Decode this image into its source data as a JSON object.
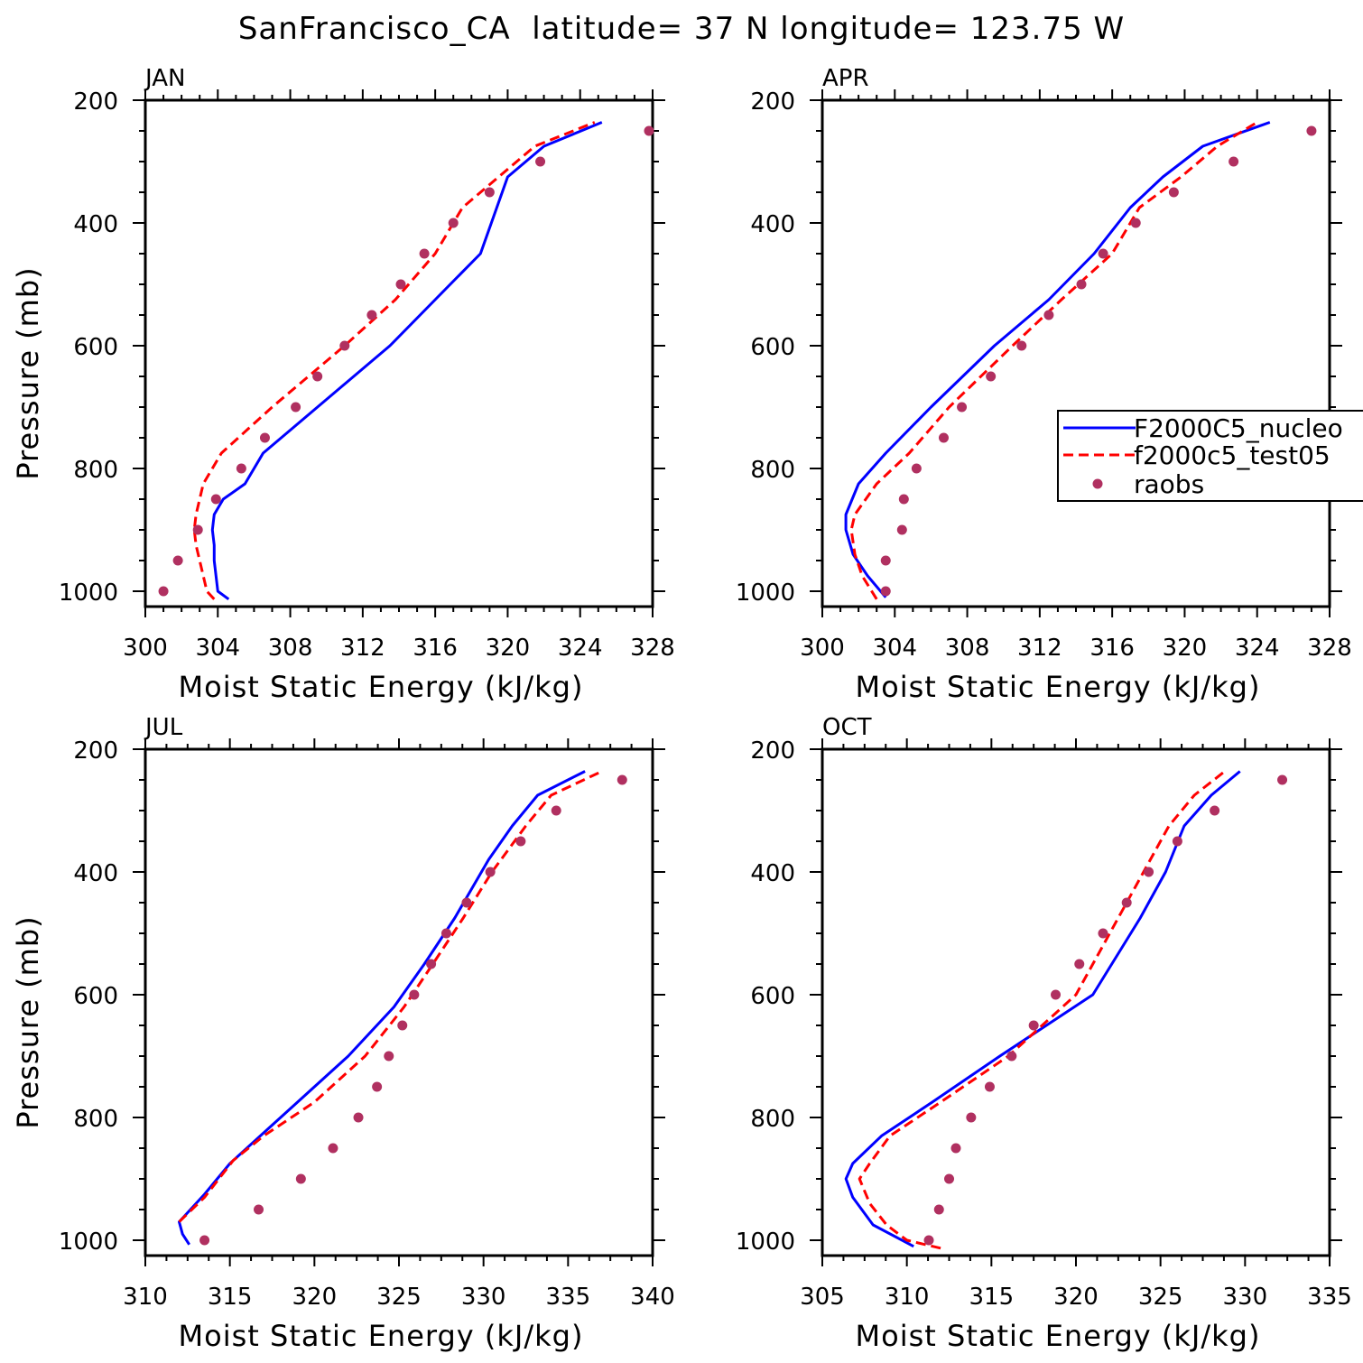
{
  "title": "SanFrancisco_CA  latitude= 37 N longitude= 123.75 W",
  "legend": {
    "entries": [
      {
        "label": "F2000C5_nucleo",
        "style": "solid",
        "color": "#0000ff"
      },
      {
        "label": "f2000c5_test05",
        "style": "dashed",
        "color": "#ff0000"
      },
      {
        "label": "raobs",
        "style": "marker",
        "color": "#b03060"
      }
    ]
  },
  "chart_data": [
    {
      "type": "line",
      "panel": "JAN",
      "xlabel": "Moist Static Energy (kJ/kg)",
      "ylabel": "Pressure (mb)",
      "xlim": [
        300,
        328
      ],
      "ylim": [
        1000,
        200
      ],
      "xticks": [
        300,
        304,
        308,
        312,
        316,
        320,
        324,
        328
      ],
      "yticks": [
        200,
        400,
        600,
        800,
        1000
      ],
      "series": [
        {
          "name": "F2000C5_nucleo",
          "color": "#0000ff",
          "style": "solid",
          "points": [
            [
              304.6,
              1013
            ],
            [
              304.0,
              1000
            ],
            [
              303.9,
              975
            ],
            [
              303.8,
              950
            ],
            [
              303.8,
              925
            ],
            [
              303.7,
              900
            ],
            [
              303.8,
              875
            ],
            [
              304.3,
              850
            ],
            [
              305.5,
              825
            ],
            [
              306.5,
              775
            ],
            [
              309.5,
              700
            ],
            [
              313.5,
              600
            ],
            [
              316.0,
              525
            ],
            [
              318.5,
              450
            ],
            [
              320.0,
              325
            ],
            [
              322.0,
              275
            ],
            [
              325.2,
              236
            ]
          ]
        },
        {
          "name": "f2000c5_test05",
          "color": "#ff0000",
          "style": "dashed",
          "points": [
            [
              303.8,
              1013
            ],
            [
              303.4,
              1000
            ],
            [
              303.2,
              975
            ],
            [
              303.0,
              950
            ],
            [
              302.8,
              925
            ],
            [
              302.7,
              900
            ],
            [
              302.8,
              875
            ],
            [
              303.2,
              825
            ],
            [
              304.2,
              775
            ],
            [
              307.0,
              700
            ],
            [
              311.0,
              600
            ],
            [
              313.8,
              525
            ],
            [
              316.0,
              450
            ],
            [
              317.5,
              375
            ],
            [
              319.5,
              325
            ],
            [
              321.5,
              275
            ],
            [
              324.8,
              236
            ]
          ]
        },
        {
          "name": "raobs",
          "color": "#b03060",
          "style": "marker",
          "points": [
            [
              301.0,
              1000
            ],
            [
              301.8,
              950
            ],
            [
              302.9,
              900
            ],
            [
              303.9,
              850
            ],
            [
              305.3,
              800
            ],
            [
              306.6,
              750
            ],
            [
              308.3,
              700
            ],
            [
              309.5,
              650
            ],
            [
              311.0,
              600
            ],
            [
              312.5,
              550
            ],
            [
              314.1,
              500
            ],
            [
              315.4,
              450
            ],
            [
              317.0,
              400
            ],
            [
              319.0,
              350
            ],
            [
              321.8,
              300
            ],
            [
              327.8,
              250
            ]
          ]
        }
      ]
    },
    {
      "type": "line",
      "panel": "APR",
      "xlabel": "Moist Static Energy (kJ/kg)",
      "ylabel": "",
      "xlim": [
        300,
        328
      ],
      "ylim": [
        1000,
        200
      ],
      "xticks": [
        300,
        304,
        308,
        312,
        316,
        320,
        324,
        328
      ],
      "yticks": [
        200,
        400,
        600,
        800,
        1000
      ],
      "legend": "right",
      "series": [
        {
          "name": "F2000C5_nucleo",
          "color": "#0000ff",
          "style": "solid",
          "points": [
            [
              303.5,
              1010
            ],
            [
              302.5,
              975
            ],
            [
              301.7,
              940
            ],
            [
              301.3,
              900
            ],
            [
              301.3,
              875
            ],
            [
              302.0,
              825
            ],
            [
              303.5,
              775
            ],
            [
              306.0,
              700
            ],
            [
              309.5,
              600
            ],
            [
              312.5,
              525
            ],
            [
              315.0,
              450
            ],
            [
              317.0,
              375
            ],
            [
              318.8,
              325
            ],
            [
              321.0,
              275
            ],
            [
              324.7,
              236
            ]
          ]
        },
        {
          "name": "f2000c5_test05",
          "color": "#ff0000",
          "style": "dashed",
          "points": [
            [
              303.0,
              1013
            ],
            [
              302.2,
              975
            ],
            [
              301.8,
              940
            ],
            [
              301.6,
              900
            ],
            [
              301.8,
              875
            ],
            [
              303.0,
              825
            ],
            [
              304.8,
              775
            ],
            [
              307.0,
              700
            ],
            [
              310.5,
              600
            ],
            [
              313.2,
              525
            ],
            [
              316.0,
              450
            ],
            [
              317.5,
              375
            ],
            [
              319.8,
              325
            ],
            [
              321.8,
              275
            ],
            [
              324.0,
              236
            ]
          ]
        },
        {
          "name": "raobs",
          "color": "#b03060",
          "style": "marker",
          "points": [
            [
              303.5,
              1000
            ],
            [
              303.5,
              950
            ],
            [
              304.4,
              900
            ],
            [
              304.5,
              850
            ],
            [
              305.2,
              800
            ],
            [
              306.7,
              750
            ],
            [
              307.7,
              700
            ],
            [
              309.3,
              650
            ],
            [
              311.0,
              600
            ],
            [
              312.5,
              550
            ],
            [
              314.3,
              500
            ],
            [
              315.5,
              450
            ],
            [
              317.3,
              400
            ],
            [
              319.4,
              350
            ],
            [
              322.7,
              300
            ],
            [
              327.0,
              250
            ]
          ]
        }
      ]
    },
    {
      "type": "line",
      "panel": "JUL",
      "xlabel": "Moist Static Energy (kJ/kg)",
      "ylabel": "Pressure (mb)",
      "xlim": [
        310,
        340
      ],
      "ylim": [
        1000,
        200
      ],
      "xticks": [
        310,
        315,
        320,
        325,
        330,
        335,
        340
      ],
      "yticks": [
        200,
        400,
        600,
        800,
        1000
      ],
      "series": [
        {
          "name": "F2000C5_nucleo",
          "color": "#0000ff",
          "style": "solid",
          "points": [
            [
              312.6,
              1007
            ],
            [
              312.2,
              990
            ],
            [
              312.0,
              970
            ],
            [
              313.5,
              925
            ],
            [
              315.0,
              875
            ],
            [
              317.0,
              825
            ],
            [
              319.0,
              775
            ],
            [
              322.0,
              700
            ],
            [
              324.7,
              620
            ],
            [
              326.5,
              550
            ],
            [
              328.3,
              475
            ],
            [
              330.3,
              380
            ],
            [
              331.7,
              325
            ],
            [
              333.2,
              275
            ],
            [
              336.0,
              236
            ]
          ]
        },
        {
          "name": "f2000c5_test05",
          "color": "#ff0000",
          "style": "dashed",
          "points": [
            [
              312.0,
              970
            ],
            [
              313.5,
              930
            ],
            [
              315.2,
              870
            ],
            [
              317.0,
              830
            ],
            [
              320.0,
              775
            ],
            [
              323.0,
              700
            ],
            [
              325.3,
              620
            ],
            [
              327.0,
              550
            ],
            [
              328.8,
              475
            ],
            [
              330.5,
              400
            ],
            [
              332.5,
              325
            ],
            [
              334.0,
              275
            ],
            [
              337.0,
              236
            ]
          ]
        },
        {
          "name": "raobs",
          "color": "#b03060",
          "style": "marker",
          "points": [
            [
              313.5,
              1000
            ],
            [
              316.7,
              950
            ],
            [
              319.2,
              900
            ],
            [
              321.1,
              850
            ],
            [
              322.6,
              800
            ],
            [
              323.7,
              750
            ],
            [
              324.4,
              700
            ],
            [
              325.2,
              650
            ],
            [
              325.9,
              600
            ],
            [
              326.9,
              550
            ],
            [
              327.8,
              500
            ],
            [
              329.0,
              450
            ],
            [
              330.4,
              400
            ],
            [
              332.2,
              350
            ],
            [
              334.3,
              300
            ],
            [
              338.2,
              250
            ]
          ]
        }
      ]
    },
    {
      "type": "line",
      "panel": "OCT",
      "xlabel": "Moist Static Energy (kJ/kg)",
      "ylabel": "",
      "xlim": [
        305,
        335
      ],
      "ylim": [
        1000,
        200
      ],
      "xticks": [
        305,
        310,
        315,
        320,
        325,
        330,
        335
      ],
      "yticks": [
        200,
        400,
        600,
        800,
        1000
      ],
      "series": [
        {
          "name": "F2000C5_nucleo",
          "color": "#0000ff",
          "style": "solid",
          "points": [
            [
              310.4,
              1010
            ],
            [
              308.0,
              975
            ],
            [
              306.8,
              930
            ],
            [
              306.4,
              900
            ],
            [
              306.8,
              875
            ],
            [
              308.5,
              830
            ],
            [
              311.5,
              775
            ],
            [
              315.5,
              700
            ],
            [
              321.0,
              600
            ],
            [
              323.8,
              475
            ],
            [
              325.3,
              400
            ],
            [
              326.4,
              325
            ],
            [
              328.0,
              275
            ],
            [
              329.7,
              236
            ]
          ]
        },
        {
          "name": "f2000c5_test05",
          "color": "#ff0000",
          "style": "dashed",
          "points": [
            [
              312.0,
              1013
            ],
            [
              310.0,
              1000
            ],
            [
              308.8,
              975
            ],
            [
              307.8,
              940
            ],
            [
              307.2,
              900
            ],
            [
              307.8,
              875
            ],
            [
              309.0,
              830
            ],
            [
              312.0,
              775
            ],
            [
              316.0,
              700
            ],
            [
              320.0,
              600
            ],
            [
              322.5,
              475
            ],
            [
              324.0,
              400
            ],
            [
              325.5,
              325
            ],
            [
              327.0,
              275
            ],
            [
              328.8,
              236
            ]
          ]
        },
        {
          "name": "raobs",
          "color": "#b03060",
          "style": "marker",
          "points": [
            [
              311.3,
              1000
            ],
            [
              311.9,
              950
            ],
            [
              312.5,
              900
            ],
            [
              312.9,
              850
            ],
            [
              313.8,
              800
            ],
            [
              314.9,
              750
            ],
            [
              316.2,
              700
            ],
            [
              317.5,
              650
            ],
            [
              318.8,
              600
            ],
            [
              320.2,
              550
            ],
            [
              321.6,
              500
            ],
            [
              323.0,
              450
            ],
            [
              324.3,
              400
            ],
            [
              326.0,
              350
            ],
            [
              328.2,
              300
            ],
            [
              332.2,
              250
            ]
          ]
        }
      ]
    }
  ]
}
